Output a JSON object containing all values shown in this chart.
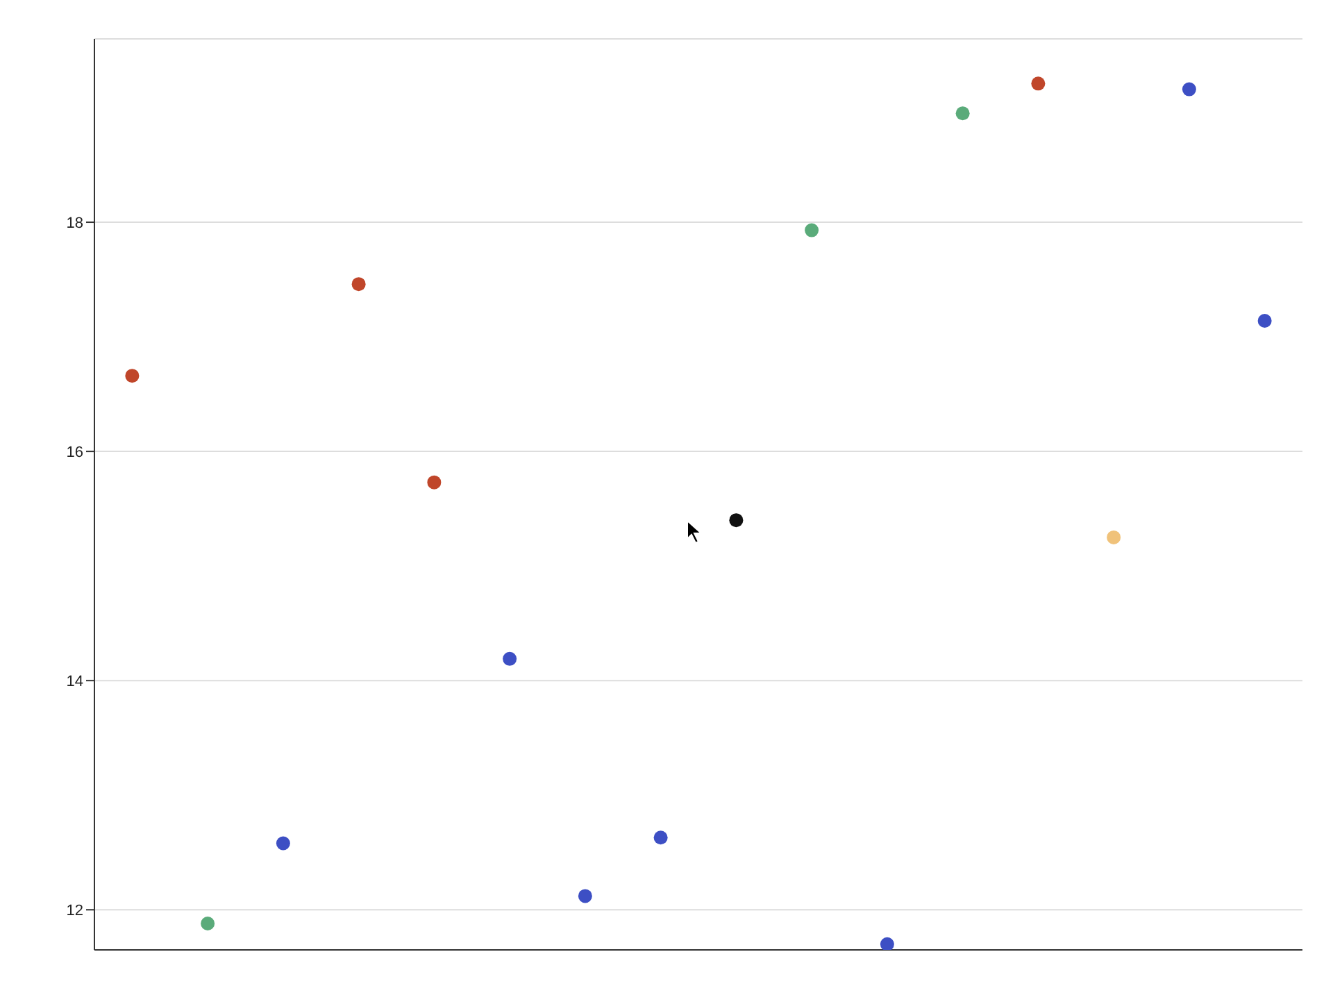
{
  "chart_data": {
    "type": "scatter",
    "categories": [
      null,
      null,
      null,
      null,
      null,
      null,
      null,
      null,
      null,
      null,
      null,
      null,
      null,
      null,
      null,
      null
    ],
    "series": [
      {
        "color": "#c0462a",
        "values": [
          16.66,
          null,
          null,
          17.46,
          15.73,
          null,
          null,
          null,
          null,
          null,
          null,
          null,
          19.21,
          null,
          null,
          null
        ]
      },
      {
        "color": "#5aab7a",
        "values": [
          null,
          11.88,
          null,
          null,
          null,
          null,
          null,
          null,
          null,
          17.93,
          null,
          18.95,
          null,
          null,
          null,
          null
        ]
      },
      {
        "color": "#3d4fc4",
        "values": [
          null,
          null,
          12.58,
          null,
          null,
          14.19,
          12.12,
          12.63,
          null,
          null,
          11.7,
          null,
          null,
          null,
          19.16,
          17.14
        ]
      },
      {
        "color": "#f0c27a",
        "values": [
          null,
          null,
          null,
          null,
          null,
          null,
          null,
          null,
          null,
          null,
          null,
          null,
          null,
          15.25,
          null,
          null
        ]
      },
      {
        "color": "#111111",
        "values": [
          null,
          null,
          null,
          null,
          null,
          null,
          null,
          null,
          15.4,
          null,
          null,
          null,
          null,
          null,
          null,
          null
        ]
      }
    ],
    "ylim": [
      11.65,
      19.6
    ],
    "yticks": [
      12,
      14,
      16,
      18
    ],
    "grid": "y",
    "tick_labels": "y",
    "marker": "circle"
  }
}
